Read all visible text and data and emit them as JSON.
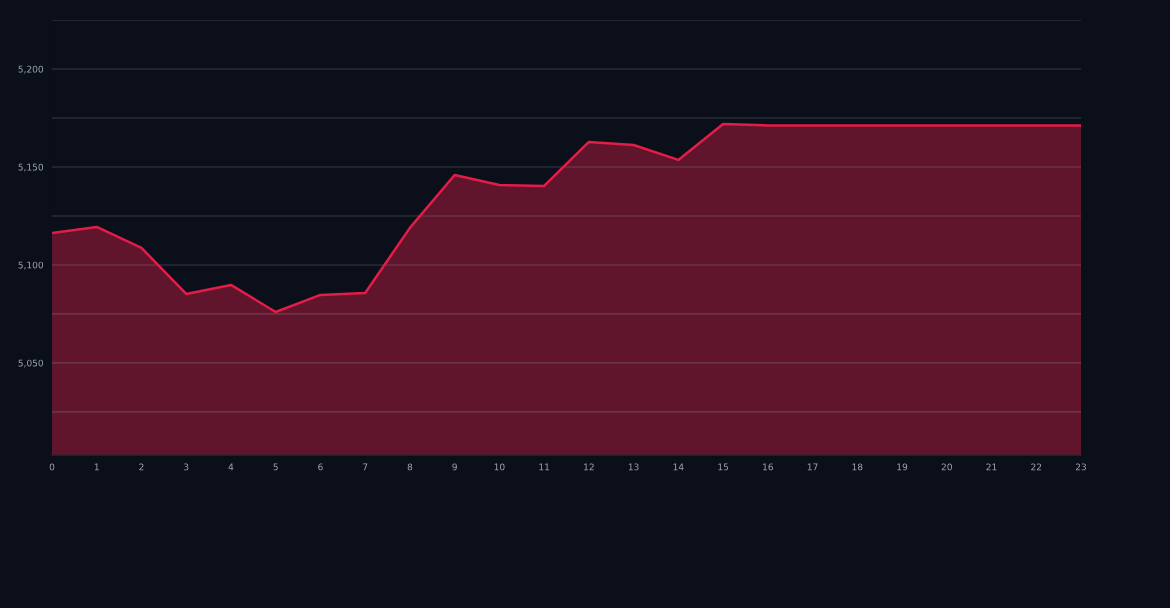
{
  "chart_data": {
    "type": "area",
    "x": [
      0,
      1,
      2,
      3,
      4,
      5,
      6,
      7,
      8,
      9,
      10,
      11,
      12,
      13,
      14,
      15,
      16,
      17,
      18,
      19,
      20,
      21,
      22,
      23
    ],
    "series": [
      {
        "color": "#e11d48",
        "values": [
          5116.3,
          5119.4,
          5108.7,
          5085.2,
          5089.8,
          5076.0,
          5084.7,
          5085.7,
          5118.9,
          5145.9,
          5140.8,
          5140.3,
          5162.8,
          5161.2,
          5153.6,
          5171.9,
          5171.2,
          5171.2,
          5171.2,
          5171.2,
          5171.2,
          5171.2,
          5171.2,
          5171.2
        ]
      }
    ],
    "xlim": [
      0,
      23
    ],
    "xticks": [
      0,
      1,
      2,
      3,
      4,
      5,
      6,
      7,
      8,
      9,
      10,
      11,
      12,
      13,
      14,
      15,
      16,
      17,
      18,
      19,
      20,
      21,
      22,
      23
    ],
    "ylim": [
      5003,
      5225
    ],
    "yticks": [
      {
        "value": 5025,
        "label": null
      },
      {
        "value": 5050,
        "label": "5,050"
      },
      {
        "value": 5075,
        "label": null
      },
      {
        "value": 5100,
        "label": "5,100"
      },
      {
        "value": 5125,
        "label": null
      },
      {
        "value": 5150,
        "label": "5,150"
      },
      {
        "value": 5175,
        "label": null
      },
      {
        "value": 5200,
        "label": "5,200"
      },
      {
        "value": 5225,
        "label": null
      }
    ],
    "grid": "y"
  }
}
